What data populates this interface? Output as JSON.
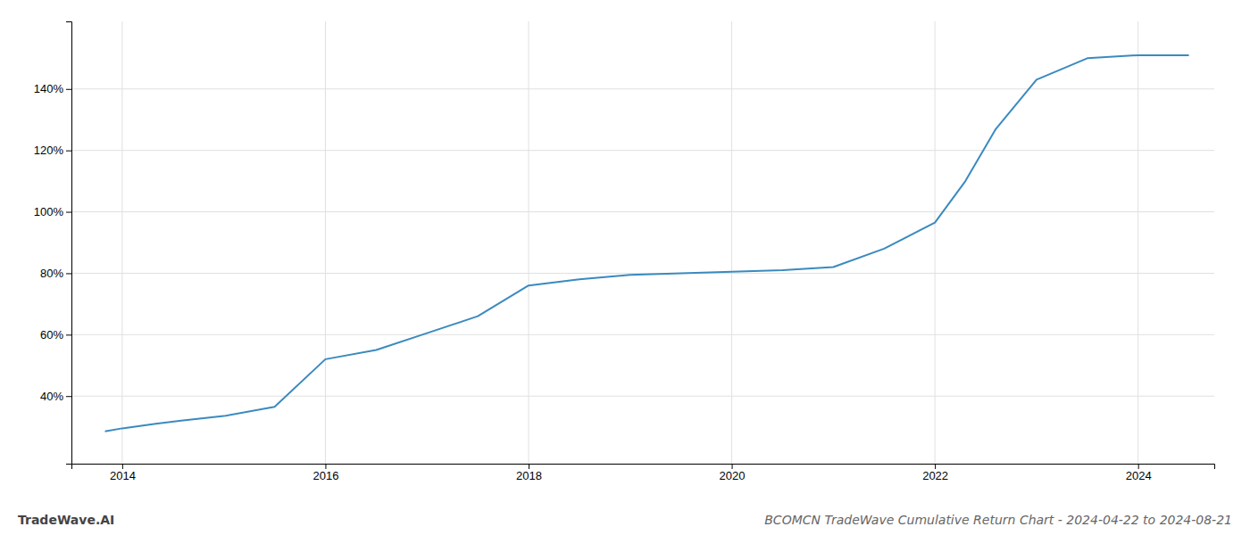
{
  "chart_data": {
    "type": "line",
    "title": "BCOMCN TradeWave Cumulative Return Chart - 2024-04-22 to 2024-08-21",
    "annotations": [
      "TradeWave.AI"
    ],
    "x": [
      2013.83,
      2014.0,
      2014.33,
      2014.58,
      2015.0,
      2015.5,
      2016.0,
      2016.5,
      2017.0,
      2017.5,
      2018.0,
      2018.5,
      2019.0,
      2019.5,
      2020.0,
      2020.5,
      2021.0,
      2021.5,
      2022.0,
      2022.3,
      2022.6,
      2023.0,
      2023.5,
      2024.0,
      2024.5
    ],
    "values": [
      28.5,
      29.5,
      31.0,
      32.0,
      33.5,
      36.5,
      52.0,
      55.0,
      60.5,
      66.0,
      76.0,
      78.0,
      79.5,
      80.0,
      80.5,
      81.0,
      82.0,
      88.0,
      96.5,
      110.0,
      127.0,
      143.0,
      150.0,
      151.0,
      151.0
    ],
    "color": "#3a8abf",
    "xlim": [
      2013.5,
      2024.75
    ],
    "ylim": [
      18,
      162
    ],
    "xticks": [
      2014,
      2016,
      2018,
      2020,
      2022,
      2024
    ],
    "yticks": [
      {
        "value": 40,
        "label": "40%"
      },
      {
        "value": 60,
        "label": "60%"
      },
      {
        "value": 80,
        "label": "80%"
      },
      {
        "value": 100,
        "label": "100%"
      },
      {
        "value": 120,
        "label": "120%"
      },
      {
        "value": 140,
        "label": "140%"
      }
    ],
    "grid": true
  }
}
